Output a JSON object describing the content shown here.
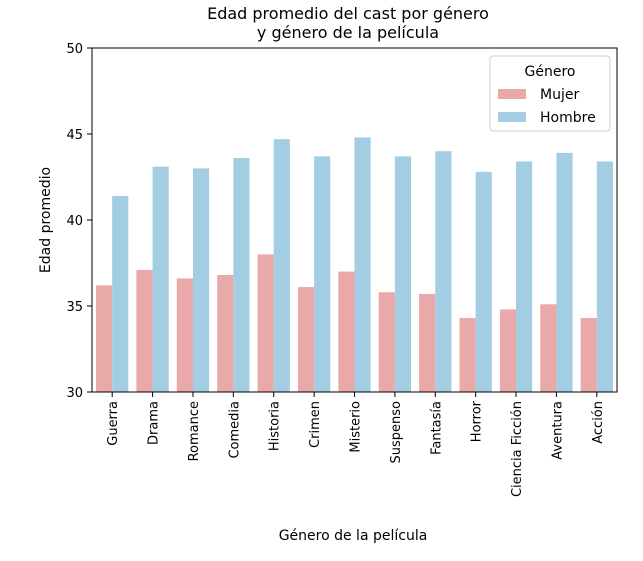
{
  "chart_data": {
    "type": "bar",
    "title_lines": [
      "Edad promedio del cast por género",
      "y género de la película"
    ],
    "xlabel": "Género de la película",
    "ylabel": "Edad promedio",
    "ylim": [
      30,
      50
    ],
    "yticks": [
      30,
      35,
      40,
      45,
      50
    ],
    "grid": false,
    "legend": {
      "title": "Género",
      "placement": "top-right"
    },
    "categories": [
      "Guerra",
      "Drama",
      "Romance",
      "Comedia",
      "Historia",
      "Crimen",
      "Misterio",
      "Suspenso",
      "Fantasía",
      "Horror",
      "Ciencia Ficción",
      "Aventura",
      "Acción"
    ],
    "series": [
      {
        "name": "Mujer",
        "color": "#e8a9a8",
        "values": [
          36.2,
          37.1,
          36.6,
          36.8,
          38.0,
          36.1,
          37.0,
          35.8,
          35.7,
          34.3,
          34.8,
          35.1,
          34.3
        ]
      },
      {
        "name": "Hombre",
        "color": "#a3cde2",
        "values": [
          41.4,
          43.1,
          43.0,
          43.6,
          44.7,
          43.7,
          44.8,
          43.7,
          44.0,
          42.8,
          43.4,
          43.9,
          43.4
        ]
      }
    ]
  }
}
